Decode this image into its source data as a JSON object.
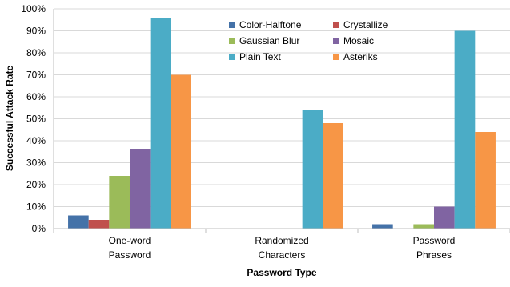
{
  "chart_data": {
    "type": "bar",
    "categories": [
      [
        "One-word",
        "Password"
      ],
      [
        "Randomized",
        "Characters"
      ],
      [
        "Password",
        "Phrases"
      ]
    ],
    "series": [
      {
        "name": "Color-Halftone",
        "color": "#4472a8",
        "values": [
          6,
          0,
          2
        ]
      },
      {
        "name": "Crystallize",
        "color": "#c0504d",
        "values": [
          4,
          0,
          0
        ]
      },
      {
        "name": "Gaussian Blur",
        "color": "#9bbb59",
        "values": [
          24,
          0,
          2
        ]
      },
      {
        "name": "Mosaic",
        "color": "#8064a2",
        "values": [
          36,
          0,
          10
        ]
      },
      {
        "name": "Plain Text",
        "color": "#4bacc6",
        "values": [
          96,
          54,
          90
        ]
      },
      {
        "name": "Asteriks",
        "color": "#f79646",
        "values": [
          70,
          48,
          44
        ]
      }
    ],
    "xlabel": "Password Type",
    "ylabel": "Successful Attack Rate",
    "ylim": [
      0,
      100
    ],
    "yticks": [
      "0%",
      "10%",
      "20%",
      "30%",
      "40%",
      "50%",
      "60%",
      "70%",
      "80%",
      "90%",
      "100%"
    ],
    "grid": true,
    "legend_position": "top-center"
  }
}
